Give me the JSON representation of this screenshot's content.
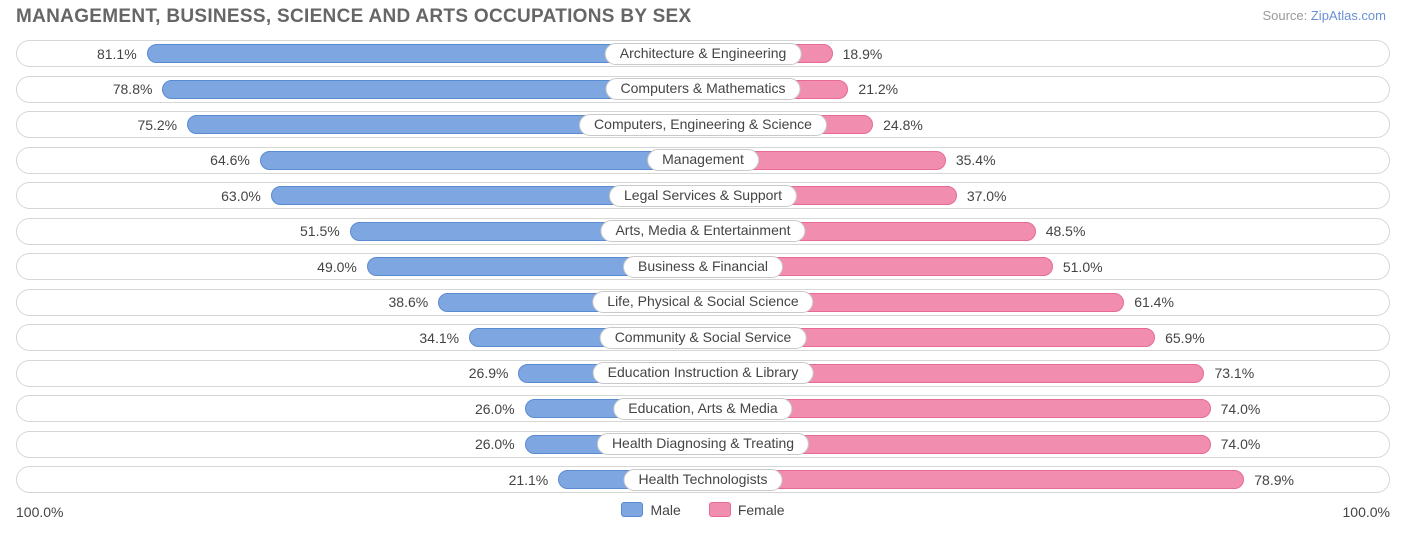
{
  "title": "MANAGEMENT, BUSINESS, SCIENCE AND ARTS OCCUPATIONS BY SEX",
  "source_prefix": "Source: ",
  "source_link_text": "ZipAtlas.com",
  "chart": {
    "type": "diverging-bar",
    "male_color": "#7ea6e0",
    "male_border": "#5a8bd0",
    "female_color": "#f18eb0",
    "female_border": "#e76a96",
    "row_border_color": "#d6d6d6",
    "background_color": "#ffffff",
    "label_fontsize": 14,
    "title_fontsize": 19,
    "title_color": "#666666",
    "axis_min_label": "100.0%",
    "axis_max_label": "100.0%",
    "legend": {
      "male": "Male",
      "female": "Female"
    },
    "rows": [
      {
        "category": "Architecture & Engineering",
        "male": 81.1,
        "female": 18.9
      },
      {
        "category": "Computers & Mathematics",
        "male": 78.8,
        "female": 21.2
      },
      {
        "category": "Computers, Engineering & Science",
        "male": 75.2,
        "female": 24.8
      },
      {
        "category": "Management",
        "male": 64.6,
        "female": 35.4
      },
      {
        "category": "Legal Services & Support",
        "male": 63.0,
        "female": 37.0
      },
      {
        "category": "Arts, Media & Entertainment",
        "male": 51.5,
        "female": 48.5
      },
      {
        "category": "Business & Financial",
        "male": 49.0,
        "female": 51.0
      },
      {
        "category": "Life, Physical & Social Science",
        "male": 38.6,
        "female": 61.4
      },
      {
        "category": "Community & Social Service",
        "male": 34.1,
        "female": 65.9
      },
      {
        "category": "Education Instruction & Library",
        "male": 26.9,
        "female": 73.1
      },
      {
        "category": "Education, Arts & Media",
        "male": 26.0,
        "female": 74.0
      },
      {
        "category": "Health Diagnosing & Treating",
        "male": 26.0,
        "female": 74.0
      },
      {
        "category": "Health Technologists",
        "male": 21.1,
        "female": 78.9
      }
    ]
  }
}
